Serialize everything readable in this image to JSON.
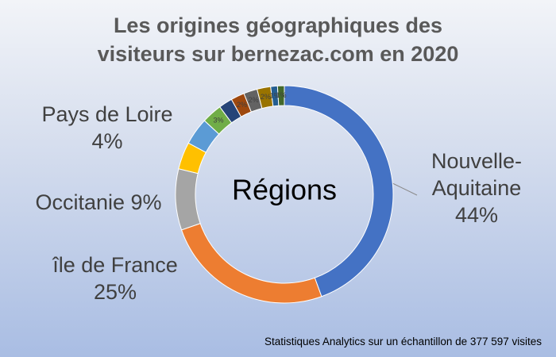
{
  "chart_data": {
    "type": "donut",
    "title": "Les origines géographiques des visiteurs sur bernezac.com en 2020",
    "center_label": "Régions",
    "footnote": "Statistiques Analytics sur un échantillon de 377 597  visites",
    "categories": [
      "Nouvelle-Aquitaine",
      "île de France",
      "Occitanie",
      null,
      "Pays de Loire",
      null,
      null,
      null,
      null,
      null,
      null,
      null
    ],
    "values": [
      44,
      25,
      9,
      4,
      4,
      3,
      2,
      2,
      2,
      2,
      1,
      1
    ],
    "value_labels": [
      "44%",
      "25%",
      "9%",
      null,
      "4%",
      "3%",
      null,
      "2%",
      "2%",
      "2%",
      "1%",
      "1%"
    ],
    "colors": [
      "#4472c4",
      "#ed7d31",
      "#a5a5a5",
      "#ffc000",
      "#5b9bd5",
      "#70ad47",
      "#264478",
      "#9e480e",
      "#636363",
      "#997300",
      "#255e91",
      "#43682b"
    ]
  }
}
